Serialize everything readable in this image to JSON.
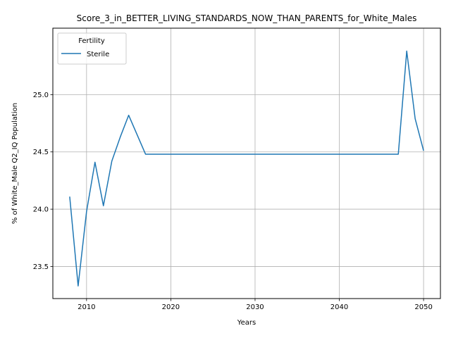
{
  "chart_data": {
    "type": "line",
    "title": "Score_3_in_BETTER_LIVING_STANDARDS_NOW_THAN_PARENTS_for_White_Males",
    "xlabel": "Years",
    "ylabel": "% of White_Male Q2_IQ Population",
    "xlim": [
      2006,
      2052
    ],
    "ylim": [
      23.22,
      25.58
    ],
    "xticks": [
      2010,
      2020,
      2030,
      2040,
      2050
    ],
    "yticks": [
      23.5,
      24.0,
      24.5,
      25.0
    ],
    "ytick_labels": [
      "23.5",
      "24.0",
      "24.5",
      "25.0"
    ],
    "grid": true,
    "legend": {
      "title": "Fertility",
      "placement": "upper-left"
    },
    "colors": {
      "series": "#1f77b4",
      "grid": "#b0b0b0"
    },
    "series": [
      {
        "name": "Sterile",
        "x": [
          2008,
          2009,
          2010,
          2011,
          2012,
          2013,
          2014,
          2015,
          2016,
          2017,
          2018,
          2019,
          2020,
          2021,
          2022,
          2023,
          2024,
          2025,
          2026,
          2027,
          2028,
          2029,
          2030,
          2031,
          2032,
          2033,
          2034,
          2035,
          2036,
          2037,
          2038,
          2039,
          2040,
          2041,
          2042,
          2043,
          2044,
          2045,
          2046,
          2047,
          2048,
          2049,
          2050
        ],
        "values": [
          24.11,
          23.33,
          23.98,
          24.41,
          24.03,
          24.42,
          24.63,
          24.82,
          24.65,
          24.48,
          24.48,
          24.48,
          24.48,
          24.48,
          24.48,
          24.48,
          24.48,
          24.48,
          24.48,
          24.48,
          24.48,
          24.48,
          24.48,
          24.48,
          24.48,
          24.48,
          24.48,
          24.48,
          24.48,
          24.48,
          24.48,
          24.48,
          24.48,
          24.48,
          24.48,
          24.48,
          24.48,
          24.48,
          24.48,
          24.48,
          25.38,
          24.79,
          24.51
        ]
      }
    ]
  }
}
